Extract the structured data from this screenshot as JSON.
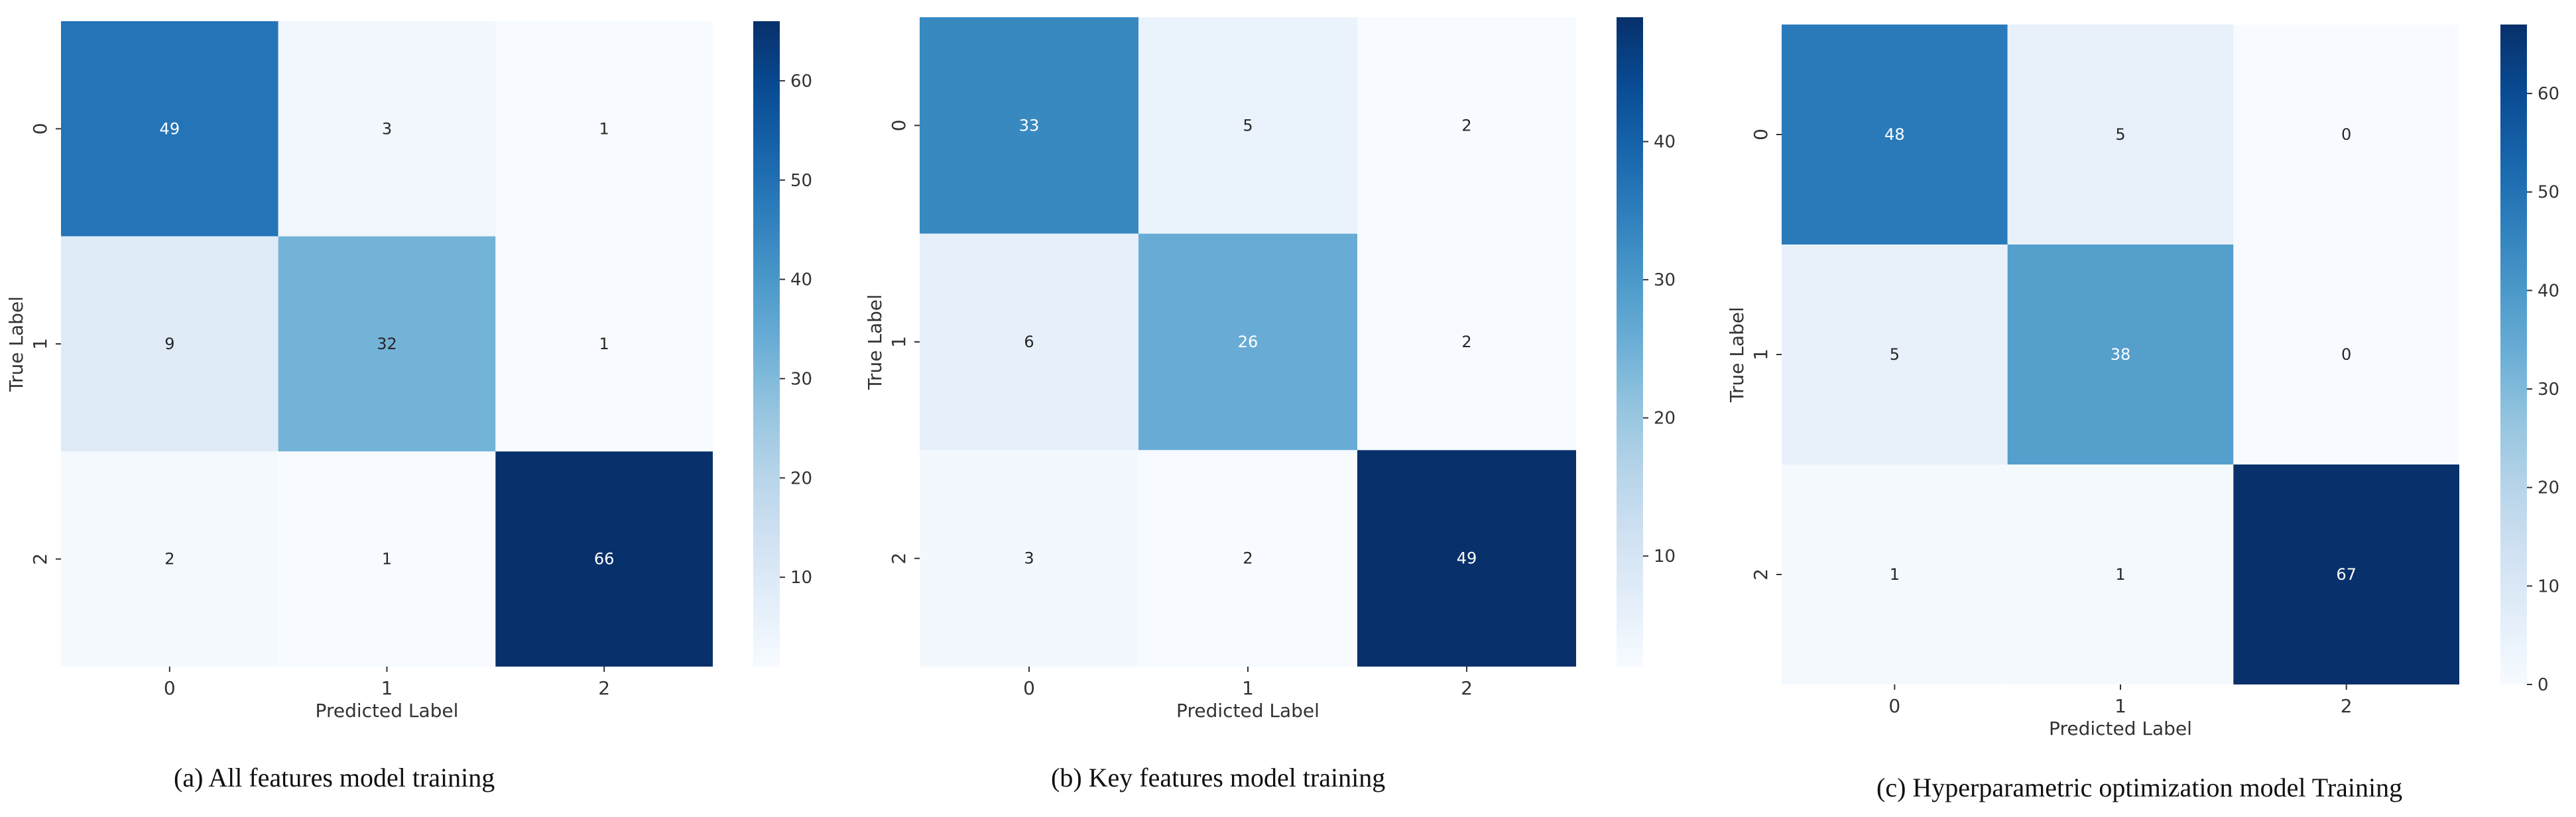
{
  "chart_data": [
    {
      "type": "heatmap",
      "caption": "(a) All features model training",
      "xlabel": "Predicted Label",
      "ylabel": "True Label",
      "x_ticks": [
        "0",
        "1",
        "2"
      ],
      "y_ticks": [
        "0",
        "1",
        "2"
      ],
      "values": [
        [
          49,
          3,
          1
        ],
        [
          9,
          32,
          1
        ],
        [
          2,
          1,
          66
        ]
      ],
      "colormap": "Blues",
      "colorbar": {
        "min": 1,
        "max": 66,
        "ticks": [
          10,
          20,
          30,
          40,
          50,
          60
        ]
      }
    },
    {
      "type": "heatmap",
      "caption": "(b) Key features model training",
      "xlabel": "Predicted Label",
      "ylabel": "True Label",
      "x_ticks": [
        "0",
        "1",
        "2"
      ],
      "y_ticks": [
        "0",
        "1",
        "2"
      ],
      "values": [
        [
          33,
          5,
          2
        ],
        [
          6,
          26,
          2
        ],
        [
          3,
          2,
          49
        ]
      ],
      "colormap": "Blues",
      "colorbar": {
        "min": 2,
        "max": 49,
        "ticks": [
          10,
          20,
          30,
          40
        ]
      }
    },
    {
      "type": "heatmap",
      "caption": "(c) Hyperparametric optimization model Training",
      "xlabel": "Predicted Label",
      "ylabel": "True Label",
      "x_ticks": [
        "0",
        "1",
        "2"
      ],
      "y_ticks": [
        "0",
        "1",
        "2"
      ],
      "values": [
        [
          48,
          5,
          0
        ],
        [
          5,
          38,
          0
        ],
        [
          1,
          1,
          67
        ]
      ],
      "colormap": "Blues",
      "colorbar": {
        "min": 0,
        "max": 67,
        "ticks": [
          0,
          10,
          20,
          30,
          40,
          50,
          60
        ]
      }
    }
  ]
}
